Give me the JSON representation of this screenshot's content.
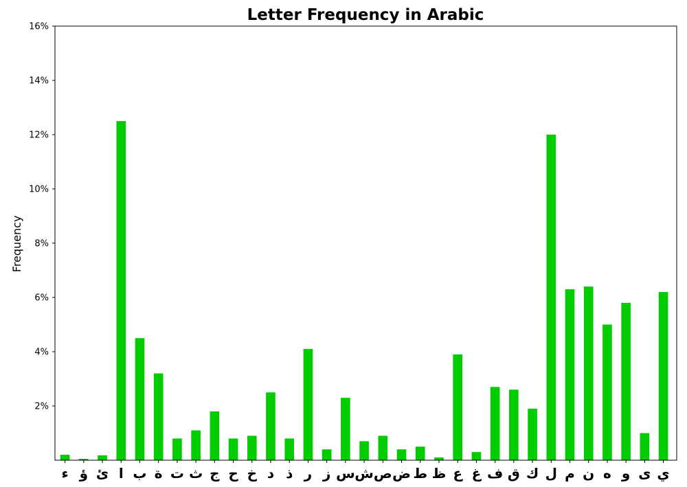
{
  "chart_data": {
    "type": "bar",
    "title": "Letter Frequency in Arabic",
    "xlabel": "",
    "ylabel": "Frequency",
    "ylim": [
      0,
      16
    ],
    "y_unit": "%",
    "y_ticks": [
      2,
      4,
      6,
      8,
      10,
      12,
      14,
      16
    ],
    "y_tick_labels": [
      "2%",
      "4%",
      "6%",
      "8%",
      "10%",
      "12%",
      "14%",
      "16%"
    ],
    "grid": false,
    "bar_color": "#00cc00",
    "categories": [
      "ء",
      "ؤ",
      "ئ",
      "ا",
      "ب",
      "ة",
      "ت",
      "ث",
      "ج",
      "ح",
      "خ",
      "د",
      "ذ",
      "ر",
      "ز",
      "س",
      "ش",
      "ص",
      "ض",
      "ط",
      "ظ",
      "ع",
      "غ",
      "ف",
      "ق",
      "ك",
      "ل",
      "م",
      "ن",
      "ه",
      "و",
      "ى",
      "ي"
    ],
    "values": [
      0.2,
      0.05,
      0.18,
      12.5,
      4.5,
      3.2,
      0.8,
      1.1,
      1.8,
      0.8,
      0.9,
      2.5,
      0.8,
      4.1,
      0.4,
      2.3,
      0.7,
      0.9,
      0.4,
      0.5,
      0.1,
      3.9,
      0.3,
      2.7,
      2.6,
      1.9,
      12.0,
      6.3,
      6.4,
      5.0,
      5.8,
      1.0,
      6.2
    ]
  }
}
